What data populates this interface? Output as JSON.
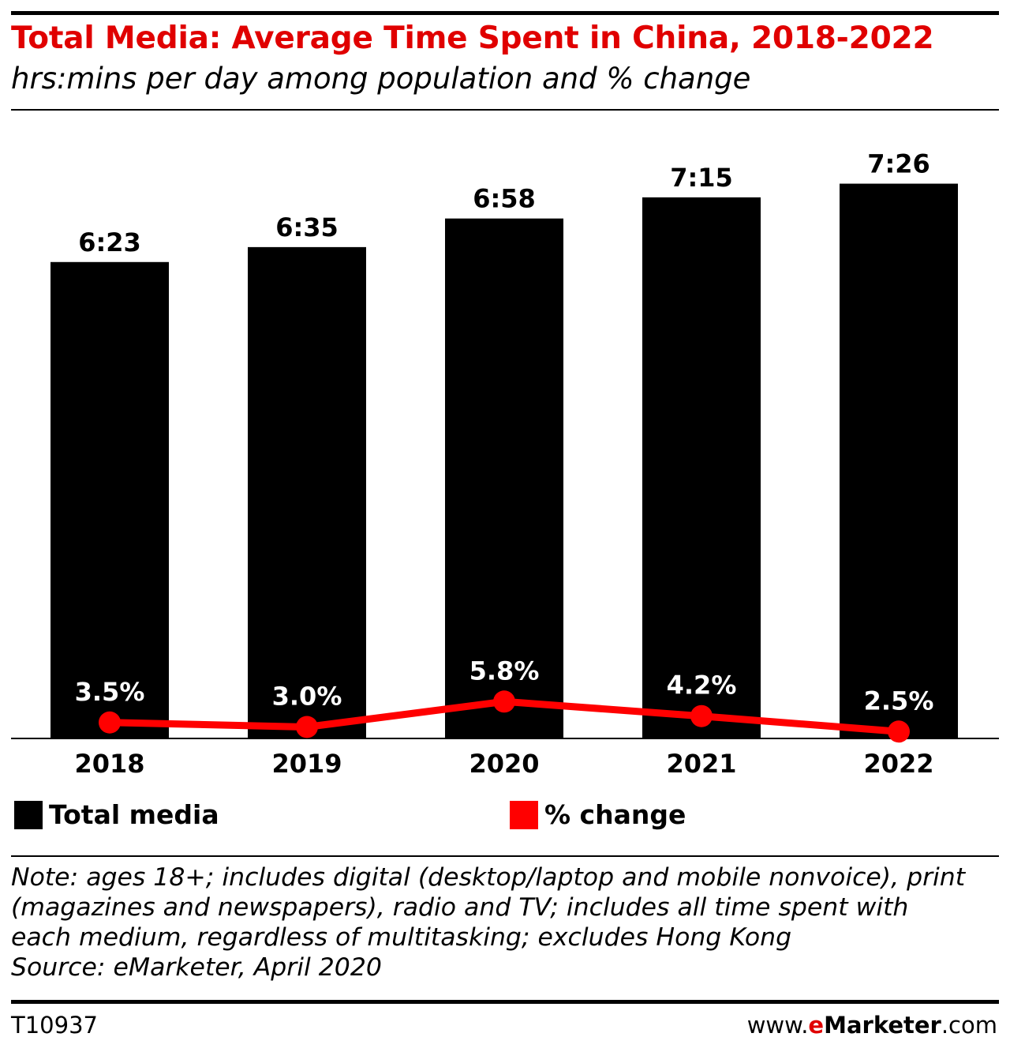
{
  "header": {
    "title": "Total Media: Average Time Spent in China, 2018-2022",
    "subtitle": "hrs:mins per day among population and % change"
  },
  "colors": {
    "bar": "#000000",
    "line": "#ff0000",
    "title": "#e00000"
  },
  "legend": {
    "bar_label": "Total media",
    "line_label": "% change"
  },
  "chart_data": {
    "type": "bar",
    "categories": [
      "2018",
      "2019",
      "2020",
      "2021",
      "2022"
    ],
    "series": [
      {
        "name": "Total media",
        "type": "bar",
        "values_minutes": [
          383,
          395,
          418,
          435,
          446
        ],
        "labels": [
          "6:23",
          "6:35",
          "6:58",
          "7:15",
          "7:26"
        ]
      },
      {
        "name": "% change",
        "type": "line",
        "values": [
          3.5,
          3.0,
          5.8,
          4.2,
          2.5
        ],
        "labels": [
          "3.5%",
          "3.0%",
          "5.8%",
          "4.2%",
          "2.5%"
        ]
      }
    ],
    "title": "Total Media: Average Time Spent in China, 2018-2022",
    "legend_position": "bottom",
    "grid": false
  },
  "footer": {
    "note_lines": [
      "Note: ages 18+; includes digital (desktop/laptop and mobile nonvoice), print",
      "(magazines and newspapers), radio and TV; includes all time spent with",
      "each medium, regardless of multitasking; excludes Hong Kong"
    ],
    "source": "Source: eMarketer, April 2020",
    "chart_id": "T10937",
    "brand_prefix": "www.",
    "brand_e": "e",
    "brand_name": "Marketer",
    "brand_suffix": ".com"
  }
}
